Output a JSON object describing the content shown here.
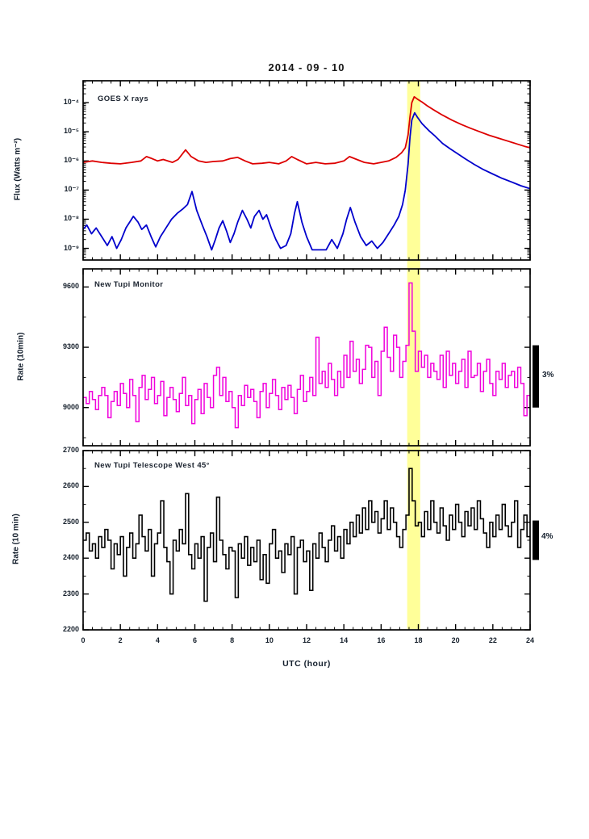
{
  "title": "2014 - 09 - 10",
  "x_axis": {
    "label": "UTC (hour)",
    "range_hours": [
      0,
      24
    ],
    "ticks": [
      0,
      2,
      4,
      6,
      8,
      10,
      12,
      14,
      16,
      18,
      20,
      22,
      24
    ],
    "minor_step_hours": 0.5
  },
  "highlight": {
    "from_hour": 17.4,
    "to_hour": 18.1,
    "color": "#FFFF99"
  },
  "colors": {
    "red_series": "#DD0000",
    "blue_series": "#0000CC",
    "magenta_series": "#F000DC",
    "black_series": "#000000",
    "axis": "#000000",
    "highlight_band": "#FFFF99"
  },
  "chart_data": [
    {
      "type": "line",
      "label": "GOES X rays",
      "ylabel": "Flux (Watts m⁻²)",
      "yscale": "log10",
      "ylim_log10": [
        -9.4,
        -3.25
      ],
      "ytick_exponents": [
        -4,
        -5,
        -6,
        -7,
        -8,
        -9
      ],
      "ytick_labels": [
        "10⁻⁴",
        "10⁻⁵",
        "10⁻⁶",
        "10⁻⁷",
        "10⁻⁸",
        "10⁻⁹"
      ],
      "series": [
        {
          "name": "red_series",
          "color": "#DD0000",
          "log10_flux_points": [
            [
              0,
              -6.05
            ],
            [
              0.5,
              -6.0
            ],
            [
              1,
              -6.05
            ],
            [
              1.5,
              -6.08
            ],
            [
              2,
              -6.1
            ],
            [
              2.6,
              -6.05
            ],
            [
              3.1,
              -6.0
            ],
            [
              3.4,
              -5.85
            ],
            [
              3.7,
              -5.92
            ],
            [
              4.0,
              -6.0
            ],
            [
              4.3,
              -5.95
            ],
            [
              4.8,
              -6.05
            ],
            [
              5.1,
              -5.95
            ],
            [
              5.5,
              -5.62
            ],
            [
              5.8,
              -5.85
            ],
            [
              6.2,
              -6.0
            ],
            [
              6.6,
              -6.05
            ],
            [
              7.0,
              -6.02
            ],
            [
              7.5,
              -6.0
            ],
            [
              7.9,
              -5.92
            ],
            [
              8.3,
              -5.88
            ],
            [
              8.7,
              -6.0
            ],
            [
              9.1,
              -6.1
            ],
            [
              9.6,
              -6.08
            ],
            [
              10.0,
              -6.05
            ],
            [
              10.5,
              -6.1
            ],
            [
              10.9,
              -6.0
            ],
            [
              11.2,
              -5.85
            ],
            [
              11.5,
              -5.95
            ],
            [
              12.0,
              -6.1
            ],
            [
              12.5,
              -6.05
            ],
            [
              13.0,
              -6.1
            ],
            [
              13.5,
              -6.08
            ],
            [
              14.0,
              -6.0
            ],
            [
              14.3,
              -5.85
            ],
            [
              14.7,
              -5.95
            ],
            [
              15.1,
              -6.05
            ],
            [
              15.6,
              -6.1
            ],
            [
              16.0,
              -6.05
            ],
            [
              16.4,
              -6.0
            ],
            [
              16.8,
              -5.88
            ],
            [
              17.1,
              -5.72
            ],
            [
              17.3,
              -5.55
            ],
            [
              17.45,
              -5.1
            ],
            [
              17.55,
              -4.5
            ],
            [
              17.65,
              -4.0
            ],
            [
              17.78,
              -3.8
            ],
            [
              17.95,
              -3.88
            ],
            [
              18.2,
              -3.98
            ],
            [
              18.5,
              -4.12
            ],
            [
              18.9,
              -4.28
            ],
            [
              19.3,
              -4.43
            ],
            [
              19.8,
              -4.6
            ],
            [
              20.3,
              -4.75
            ],
            [
              20.8,
              -4.88
            ],
            [
              21.3,
              -5.0
            ],
            [
              21.8,
              -5.12
            ],
            [
              22.3,
              -5.22
            ],
            [
              22.8,
              -5.32
            ],
            [
              23.3,
              -5.42
            ],
            [
              23.7,
              -5.5
            ],
            [
              24,
              -5.55
            ]
          ]
        },
        {
          "name": "blue_series",
          "color": "#0000CC",
          "log10_flux_points": [
            [
              0,
              -8.35
            ],
            [
              0.2,
              -8.2
            ],
            [
              0.45,
              -8.5
            ],
            [
              0.7,
              -8.3
            ],
            [
              1.0,
              -8.6
            ],
            [
              1.3,
              -8.9
            ],
            [
              1.55,
              -8.6
            ],
            [
              1.8,
              -9.0
            ],
            [
              2.05,
              -8.7
            ],
            [
              2.3,
              -8.3
            ],
            [
              2.55,
              -8.05
            ],
            [
              2.7,
              -7.9
            ],
            [
              2.95,
              -8.1
            ],
            [
              3.15,
              -8.35
            ],
            [
              3.4,
              -8.2
            ],
            [
              3.65,
              -8.6
            ],
            [
              3.9,
              -8.95
            ],
            [
              4.15,
              -8.6
            ],
            [
              4.45,
              -8.3
            ],
            [
              4.75,
              -8.0
            ],
            [
              5.05,
              -7.8
            ],
            [
              5.35,
              -7.65
            ],
            [
              5.6,
              -7.5
            ],
            [
              5.85,
              -7.05
            ],
            [
              6.1,
              -7.7
            ],
            [
              6.4,
              -8.2
            ],
            [
              6.65,
              -8.6
            ],
            [
              6.9,
              -9.05
            ],
            [
              7.1,
              -8.7
            ],
            [
              7.3,
              -8.3
            ],
            [
              7.5,
              -8.05
            ],
            [
              7.7,
              -8.4
            ],
            [
              7.9,
              -8.8
            ],
            [
              8.1,
              -8.5
            ],
            [
              8.3,
              -8.1
            ],
            [
              8.55,
              -7.7
            ],
            [
              8.8,
              -8.0
            ],
            [
              9.0,
              -8.3
            ],
            [
              9.2,
              -7.9
            ],
            [
              9.45,
              -7.7
            ],
            [
              9.65,
              -8.0
            ],
            [
              9.85,
              -7.85
            ],
            [
              10.1,
              -8.3
            ],
            [
              10.35,
              -8.7
            ],
            [
              10.6,
              -9.0
            ],
            [
              10.9,
              -8.9
            ],
            [
              11.15,
              -8.5
            ],
            [
              11.35,
              -7.8
            ],
            [
              11.5,
              -7.4
            ],
            [
              11.75,
              -8.1
            ],
            [
              12.0,
              -8.6
            ],
            [
              12.3,
              -9.05
            ],
            [
              12.7,
              -9.05
            ],
            [
              13.05,
              -9.05
            ],
            [
              13.35,
              -8.7
            ],
            [
              13.65,
              -9.0
            ],
            [
              13.95,
              -8.5
            ],
            [
              14.15,
              -8.0
            ],
            [
              14.35,
              -7.6
            ],
            [
              14.6,
              -8.1
            ],
            [
              14.9,
              -8.6
            ],
            [
              15.2,
              -8.9
            ],
            [
              15.5,
              -8.75
            ],
            [
              15.8,
              -9.0
            ],
            [
              16.1,
              -8.8
            ],
            [
              16.4,
              -8.5
            ],
            [
              16.7,
              -8.2
            ],
            [
              16.95,
              -7.9
            ],
            [
              17.15,
              -7.5
            ],
            [
              17.3,
              -7.0
            ],
            [
              17.45,
              -6.1
            ],
            [
              17.55,
              -5.2
            ],
            [
              17.65,
              -4.6
            ],
            [
              17.8,
              -4.35
            ],
            [
              17.95,
              -4.5
            ],
            [
              18.2,
              -4.72
            ],
            [
              18.55,
              -4.95
            ],
            [
              18.9,
              -5.15
            ],
            [
              19.3,
              -5.4
            ],
            [
              19.7,
              -5.58
            ],
            [
              20.1,
              -5.75
            ],
            [
              20.5,
              -5.92
            ],
            [
              21.0,
              -6.12
            ],
            [
              21.5,
              -6.3
            ],
            [
              22.0,
              -6.45
            ],
            [
              22.5,
              -6.6
            ],
            [
              23.0,
              -6.72
            ],
            [
              23.5,
              -6.85
            ],
            [
              24,
              -6.95
            ]
          ]
        }
      ]
    },
    {
      "type": "step",
      "label": "New Tupi Monitor",
      "ylabel": "Rate (10min)",
      "ylim": [
        8810,
        9690
      ],
      "yticks": [
        9600,
        9300,
        9000
      ],
      "yticks_minor": [
        9450,
        9150,
        8850
      ],
      "color": "#F000DC",
      "bin_minutes": 10,
      "annotation": {
        "label": "3%",
        "value_from": 9310,
        "value_to": 9000
      },
      "values": [
        9050,
        9020,
        9080,
        9040,
        8990,
        9060,
        9100,
        9060,
        8950,
        9030,
        9080,
        9010,
        9120,
        9070,
        9000,
        9140,
        9060,
        8930,
        9100,
        9160,
        9040,
        9090,
        9150,
        9020,
        9060,
        9130,
        8960,
        9050,
        9100,
        9040,
        8980,
        9070,
        9150,
        9010,
        9060,
        8920,
        9040,
        9090,
        8970,
        9120,
        9050,
        9000,
        9160,
        9200,
        9060,
        9150,
        9030,
        9080,
        9000,
        8900,
        9060,
        9010,
        9110,
        9050,
        9090,
        9030,
        8950,
        9080,
        9120,
        9000,
        9070,
        9140,
        9060,
        8990,
        9100,
        9040,
        9110,
        9050,
        8970,
        9090,
        9160,
        9030,
        9080,
        9150,
        9060,
        9350,
        9120,
        9180,
        9100,
        9220,
        9140,
        9060,
        9180,
        9100,
        9260,
        9150,
        9330,
        9180,
        9240,
        9120,
        9190,
        9310,
        9300,
        9150,
        9230,
        9060,
        9280,
        9400,
        9250,
        9180,
        9360,
        9300,
        9150,
        9230,
        9310,
        9620,
        9380,
        9180,
        9280,
        9200,
        9260,
        9150,
        9220,
        9180,
        9140,
        9260,
        9100,
        9280,
        9160,
        9220,
        9120,
        9180,
        9240,
        9100,
        9280,
        9150,
        9160,
        9220,
        9080,
        9180,
        9240,
        9120,
        9060,
        9180,
        9140,
        9220,
        9100,
        9160,
        9180,
        9100,
        9200,
        9120,
        8960,
        9060
      ]
    },
    {
      "type": "step",
      "label": "New Tupi Telescope West 45°",
      "ylabel": "Rate (10 min)",
      "ylim": [
        2200,
        2700
      ],
      "yticks": [
        2700,
        2600,
        2500,
        2400,
        2300,
        2200
      ],
      "yticks_minor": [
        2650,
        2550,
        2450,
        2350,
        2250
      ],
      "color": "#000000",
      "bin_minutes": 10,
      "annotation": {
        "label": "4%",
        "value_from": 2505,
        "value_to": 2395
      },
      "values": [
        2450,
        2470,
        2420,
        2440,
        2400,
        2460,
        2430,
        2480,
        2450,
        2370,
        2440,
        2410,
        2460,
        2350,
        2430,
        2470,
        2400,
        2440,
        2520,
        2460,
        2420,
        2480,
        2350,
        2440,
        2470,
        2560,
        2430,
        2390,
        2300,
        2450,
        2420,
        2480,
        2440,
        2580,
        2410,
        2370,
        2440,
        2400,
        2460,
        2280,
        2430,
        2470,
        2390,
        2570,
        2450,
        2410,
        2370,
        2430,
        2420,
        2290,
        2440,
        2400,
        2460,
        2380,
        2430,
        2390,
        2450,
        2340,
        2410,
        2330,
        2440,
        2480,
        2400,
        2420,
        2360,
        2440,
        2410,
        2460,
        2300,
        2430,
        2450,
        2390,
        2420,
        2310,
        2440,
        2400,
        2470,
        2430,
        2390,
        2450,
        2490,
        2420,
        2460,
        2400,
        2480,
        2440,
        2500,
        2460,
        2520,
        2470,
        2540,
        2480,
        2560,
        2500,
        2530,
        2470,
        2510,
        2560,
        2480,
        2540,
        2500,
        2460,
        2430,
        2480,
        2520,
        2650,
        2560,
        2490,
        2500,
        2460,
        2530,
        2480,
        2560,
        2500,
        2470,
        2540,
        2490,
        2450,
        2520,
        2480,
        2550,
        2500,
        2460,
        2530,
        2490,
        2540,
        2480,
        2560,
        2510,
        2470,
        2430,
        2500,
        2460,
        2520,
        2480,
        2550,
        2490,
        2460,
        2500,
        2560,
        2430,
        2480,
        2520,
        2460
      ]
    }
  ]
}
